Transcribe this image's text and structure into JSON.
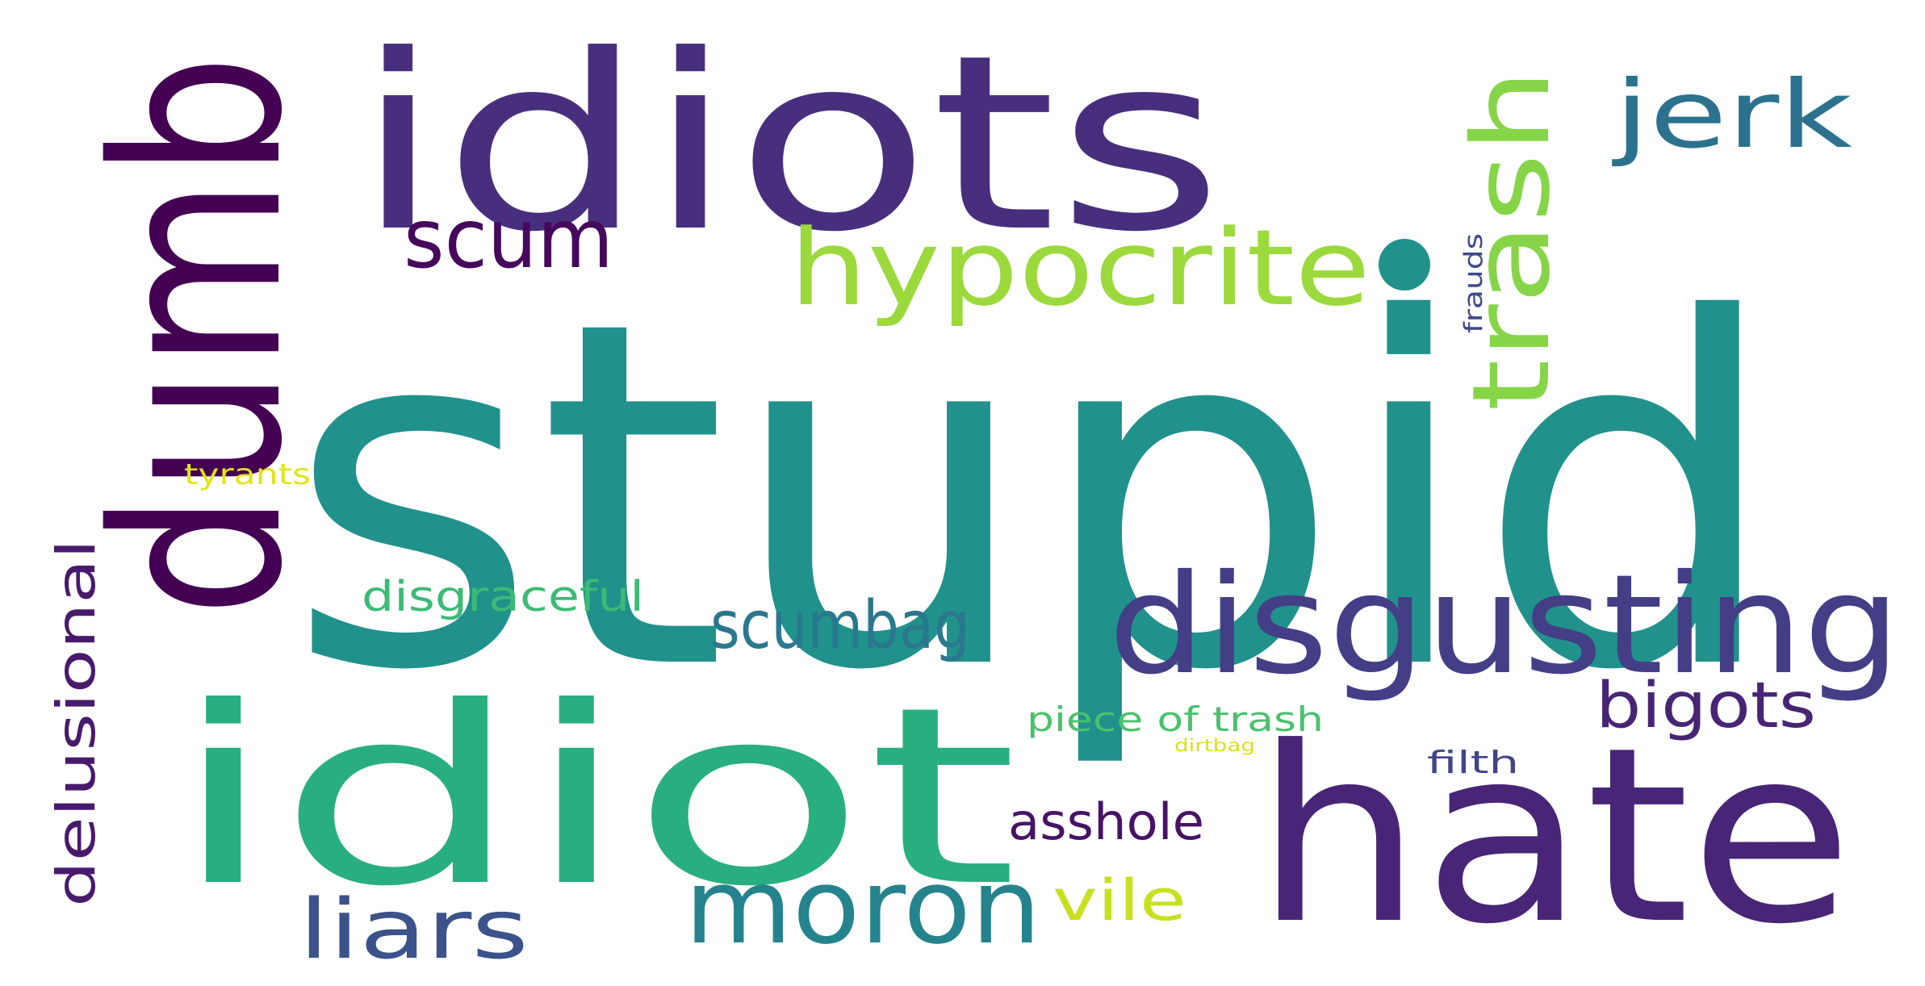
{
  "word_cloud": {
    "words": [
      {
        "text": "stupid",
        "color": "#21918c"
      },
      {
        "text": "idiots",
        "color": "#472f7d"
      },
      {
        "text": "dumb",
        "color": "#440154"
      },
      {
        "text": "idiot",
        "color": "#29af7f"
      },
      {
        "text": "hate",
        "color": "#482576"
      },
      {
        "text": "disgusting",
        "color": "#433e85"
      },
      {
        "text": "hypocrite",
        "color": "#9bd93c"
      },
      {
        "text": "trash",
        "color": "#86d549"
      },
      {
        "text": "jerk",
        "color": "#2c728e"
      },
      {
        "text": "scum",
        "color": "#46085c"
      },
      {
        "text": "moron",
        "color": "#25838e"
      },
      {
        "text": "scumbag",
        "color": "#2a788e"
      },
      {
        "text": "liars",
        "color": "#3b528b"
      },
      {
        "text": "bigots",
        "color": "#482475"
      },
      {
        "text": "delusional",
        "color": "#481a6c"
      },
      {
        "text": "disgraceful",
        "color": "#3bbb75"
      },
      {
        "text": "asshole",
        "color": "#471365"
      },
      {
        "text": "vile",
        "color": "#c8e020"
      },
      {
        "text": "tyrants",
        "color": "#e2e418"
      },
      {
        "text": "piece of trash",
        "color": "#4ac16d"
      },
      {
        "text": "filth",
        "color": "#414487"
      },
      {
        "text": "frauds",
        "color": "#3e4989"
      },
      {
        "text": "dirtbag",
        "color": "#d8e219"
      }
    ]
  }
}
